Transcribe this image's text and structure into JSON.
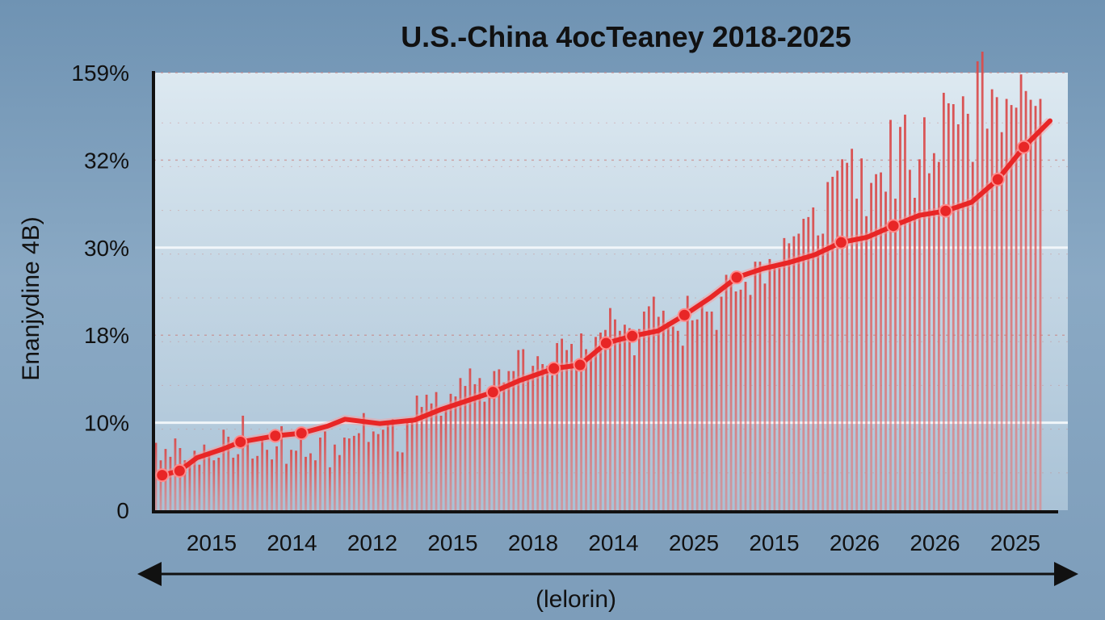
{
  "chart_data": {
    "type": "bar",
    "title": "U.S.-China 4ocTeanеy 2018-2025",
    "ylabel": "Enanjydine 4B)",
    "xlabel": "(lelorin)",
    "y_tick_labels": [
      "0",
      "10%",
      "18%",
      "30%",
      "32%",
      "159%"
    ],
    "x_tick_labels": [
      "2015",
      "2014",
      "2012",
      "2015",
      "2018",
      "2014",
      "2025",
      "2015",
      "2026",
      "2026",
      "2025"
    ],
    "grid": true,
    "legend": "none",
    "bar_values": [
      0.77,
      0.57,
      0.7,
      0.61,
      0.82,
      0.71,
      0.57,
      0.52,
      0.68,
      0.52,
      0.75,
      0.67,
      0.57,
      0.6,
      0.92,
      0.84,
      0.6,
      0.64,
      1.08,
      0.78,
      0.59,
      0.62,
      0.81,
      0.69,
      0.58,
      0.73,
      0.96,
      0.53,
      0.69,
      0.68,
      0.89,
      0.61,
      0.65,
      0.57,
      0.83,
      0.9,
      0.49,
      0.75,
      0.63,
      0.83,
      0.82,
      0.85,
      0.88,
      1.11,
      0.78,
      0.9,
      0.87,
      0.92,
      1.0,
      1.04,
      0.67,
      0.66,
      1.04,
      1.05,
      1.31,
      1.18,
      1.32,
      1.22,
      1.35,
      1.08,
      1.15,
      1.33,
      1.3,
      1.51,
      1.42,
      1.62,
      1.44,
      1.51,
      1.24,
      1.39,
      1.59,
      1.61,
      1.46,
      1.59,
      1.59,
      1.83,
      1.84,
      1.54,
      1.65,
      1.76,
      1.67,
      1.65,
      1.54,
      1.91,
      1.96,
      1.83,
      1.9,
      1.71,
      2.02,
      1.84,
      1.75,
      1.98,
      2.03,
      2.06,
      2.31,
      2.18,
      2.05,
      2.12,
      2.08,
      1.77,
      2.07,
      2.27,
      2.33,
      2.44,
      2.21,
      2.28,
      2.15,
      2.1,
      2.05,
      1.88,
      2.45,
      2.17,
      2.18,
      2.34,
      2.27,
      2.27,
      2.06,
      2.44,
      2.69,
      2.67,
      2.5,
      2.52,
      2.61,
      2.46,
      2.84,
      2.84,
      2.59,
      2.87,
      2.8,
      2.77,
      3.11,
      3.05,
      3.13,
      3.16,
      3.33,
      3.35,
      3.46,
      3.14,
      3.16,
      3.75,
      3.81,
      3.88,
      4.01,
      3.97,
      4.13,
      3.56,
      4.02,
      3.36,
      3.74,
      3.84,
      3.86,
      3.64,
      4.46,
      3.56,
      4.38,
      4.52,
      3.89,
      3.57,
      4.01,
      4.49,
      3.85,
      4.08,
      3.98,
      4.77,
      4.65,
      4.64,
      4.41,
      4.73,
      4.53,
      3.98,
      5.13,
      5.24,
      4.36,
      4.81,
      4.72,
      4.32,
      4.7,
      4.63,
      4.6,
      4.98,
      4.79,
      4.69,
      4.62,
      4.7
    ],
    "line_points": [
      [
        0.01,
        0.4
      ],
      [
        0.03,
        0.45
      ],
      [
        0.05,
        0.6
      ],
      [
        0.08,
        0.7
      ],
      [
        0.1,
        0.78
      ],
      [
        0.14,
        0.85
      ],
      [
        0.17,
        0.88
      ],
      [
        0.2,
        0.96
      ],
      [
        0.22,
        1.04
      ],
      [
        0.26,
        0.99
      ],
      [
        0.3,
        1.03
      ],
      [
        0.33,
        1.15
      ],
      [
        0.36,
        1.25
      ],
      [
        0.39,
        1.35
      ],
      [
        0.42,
        1.48
      ],
      [
        0.46,
        1.62
      ],
      [
        0.49,
        1.66
      ],
      [
        0.52,
        1.91
      ],
      [
        0.55,
        1.99
      ],
      [
        0.58,
        2.05
      ],
      [
        0.61,
        2.23
      ],
      [
        0.64,
        2.43
      ],
      [
        0.67,
        2.66
      ],
      [
        0.7,
        2.76
      ],
      [
        0.73,
        2.83
      ],
      [
        0.76,
        2.92
      ],
      [
        0.79,
        3.06
      ],
      [
        0.82,
        3.12
      ],
      [
        0.85,
        3.25
      ],
      [
        0.88,
        3.37
      ],
      [
        0.91,
        3.42
      ],
      [
        0.94,
        3.52
      ],
      [
        0.97,
        3.78
      ],
      [
        1.0,
        4.15
      ],
      [
        1.03,
        4.45
      ]
    ],
    "line_markers": [
      [
        0.01,
        0.4
      ],
      [
        0.03,
        0.45
      ],
      [
        0.1,
        0.78
      ],
      [
        0.14,
        0.85
      ],
      [
        0.17,
        0.88
      ],
      [
        0.39,
        1.35
      ],
      [
        0.46,
        1.62
      ],
      [
        0.49,
        1.66
      ],
      [
        0.52,
        1.91
      ],
      [
        0.55,
        1.99
      ],
      [
        0.61,
        2.23
      ],
      [
        0.67,
        2.66
      ],
      [
        0.79,
        3.06
      ],
      [
        0.85,
        3.25
      ],
      [
        0.91,
        3.42
      ],
      [
        0.97,
        3.78
      ],
      [
        1.0,
        4.15
      ]
    ],
    "ylim": [
      0,
      5.0
    ],
    "colors": {
      "bar": "#d94a4a",
      "line": "#e82626",
      "plot_bg_top": "#dde9f1",
      "plot_bg_bottom": "#a9c2d6"
    }
  }
}
